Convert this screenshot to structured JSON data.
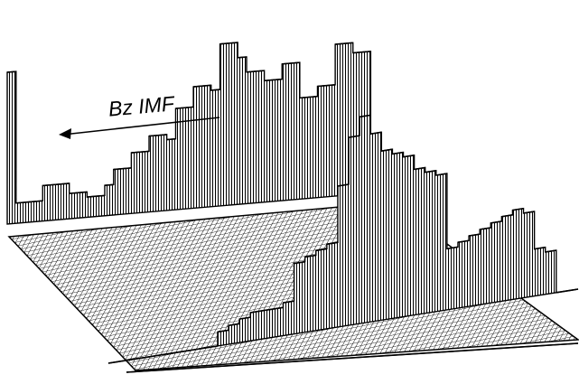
{
  "chart_data": {
    "type": "surface",
    "title": "",
    "xlabel": "",
    "ylabel": "",
    "zlabel": "",
    "grid": true,
    "annotation": {
      "text": "Bz IMF",
      "direction": "left-arrow"
    },
    "description_of_axes": "",
    "back_edge_profile": [
      42,
      0.25,
      0.25,
      0.25,
      0.25,
      0.25,
      0.25,
      0.25,
      0.25,
      0.25,
      0.25,
      0.25,
      0.25,
      0.25,
      0.25,
      0.25,
      0.25,
      0.25,
      0.25,
      0.25,
      0.25,
      0.25,
      0.25,
      0.25,
      0.25,
      0.25,
      0.25,
      0.25,
      0.25,
      0.25,
      0.25,
      0.25,
      0.25,
      0.25,
      0.25,
      0.25,
      0.25,
      0.25,
      0.25,
      0.25,
      0.25,
      0.25,
      0.25,
      0.25,
      0.25,
      0.25,
      0.25,
      0.25,
      0.25,
      0.25,
      0.25,
      0.25,
      0.25,
      0.25,
      0.25,
      0.25,
      0.25,
      0.25,
      0.25,
      0.25
    ],
    "profiles": [
      {
        "row": "back",
        "values": [
          60,
          8,
          8,
          8,
          14,
          14,
          14,
          10,
          10,
          8,
          8,
          12,
          18,
          18,
          24,
          24,
          30,
          30,
          28,
          40,
          40,
          48,
          48,
          46,
          64,
          64,
          58,
          52,
          52,
          48,
          48,
          54,
          54,
          40,
          40,
          44,
          44,
          60,
          60,
          56,
          56,
          0,
          0
        ]
      },
      {
        "row": "middle",
        "values": [
          0,
          0,
          0,
          0,
          0,
          0,
          0,
          0,
          0,
          0,
          6,
          8,
          10,
          12,
          12,
          12,
          14,
          30,
          32,
          34,
          36,
          60,
          80,
          88,
          80,
          72,
          70,
          68,
          62,
          60,
          58,
          26,
          28,
          30,
          32,
          34,
          36,
          38,
          36,
          20,
          18,
          0,
          0
        ]
      },
      {
        "row": "front",
        "values": [
          0,
          0,
          0,
          0,
          0,
          0,
          0,
          0,
          0,
          0,
          0,
          0,
          0,
          0,
          0,
          0,
          0,
          0,
          0,
          0,
          0,
          0,
          0,
          0,
          0,
          0,
          0,
          0,
          0,
          0,
          0,
          0,
          0,
          0,
          0,
          0,
          0,
          0,
          0,
          0,
          0,
          0,
          0
        ]
      }
    ]
  }
}
